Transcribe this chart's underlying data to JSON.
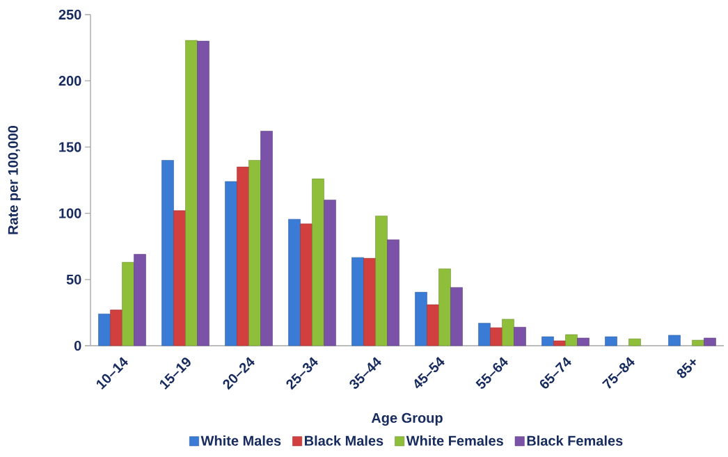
{
  "chart_data": {
    "type": "bar",
    "xlabel": "Age Group",
    "ylabel": "Rate per 100,000",
    "categories": [
      "10–14",
      "15–19",
      "20–24",
      "25–34",
      "35–44",
      "45–54",
      "55–64",
      "65–74",
      "75–84",
      "85+"
    ],
    "series": [
      {
        "name": "White Males",
        "color": "#3a7bd5",
        "values": [
          24,
          140,
          124,
          95.5,
          66.6,
          40.4,
          17,
          6.8,
          6.8,
          7.9
        ]
      },
      {
        "name": "Black Males",
        "color": "#d23f3f",
        "values": [
          27,
          102,
          135,
          92,
          66,
          31,
          13.6,
          3.7,
          null,
          null
        ]
      },
      {
        "name": "White Females",
        "color": "#8fbf3a",
        "values": [
          63,
          230.5,
          140,
          126,
          98,
          58,
          20,
          8.4,
          5.2,
          4.2
        ]
      },
      {
        "name": "Black Females",
        "color": "#7a52a8",
        "values": [
          69,
          230,
          162,
          110,
          80,
          44,
          14,
          5.8,
          null,
          5.8
        ]
      }
    ],
    "ylim": [
      0,
      250
    ],
    "yticks": [
      0,
      50,
      100,
      150,
      200,
      250
    ],
    "legend": "bottom",
    "marker": "square"
  }
}
